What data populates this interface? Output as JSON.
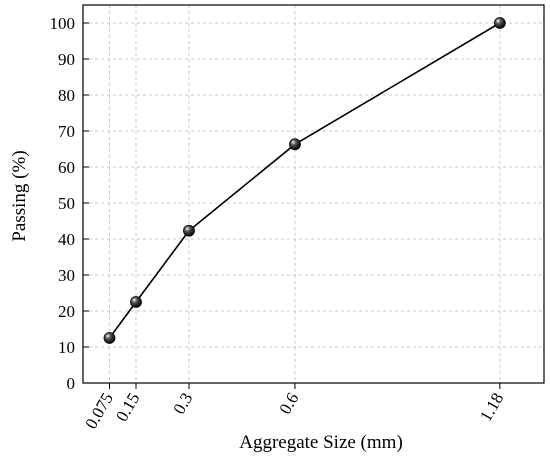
{
  "chart_data": {
    "type": "line",
    "xlabel": "Aggregate Size (mm)",
    "ylabel": "Passing (%)",
    "x_tick_labels": [
      "0.075",
      "0.15",
      "0.3",
      "0.6",
      "1.18"
    ],
    "y_tick_labels": [
      "0",
      "10",
      "20",
      "30",
      "40",
      "50",
      "60",
      "70",
      "80",
      "90",
      "100"
    ],
    "ylim": [
      0,
      105
    ],
    "grid": true,
    "series": [
      {
        "x": [
          0.075,
          0.15,
          0.3,
          0.6,
          1.18
        ],
        "y": [
          12.5,
          22.5,
          42.3,
          66.3,
          100
        ]
      }
    ]
  }
}
